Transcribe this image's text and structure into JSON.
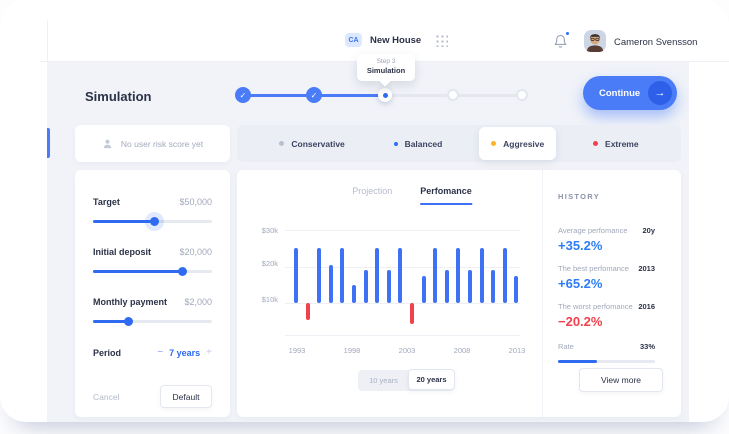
{
  "colors": {
    "accent": "#3e71f4",
    "positive": "#2e7cf6",
    "negative": "#f2414d",
    "warning": "#ffb425"
  },
  "glyphs": {
    "check": "✓",
    "arrow_right": "→",
    "minus": "−",
    "plus": "+"
  },
  "header": {
    "project_badge": "CA",
    "project_name": "New House",
    "tooltip_step": "Step 3",
    "tooltip_title": "Simulation",
    "user_name": "Cameron Svensson"
  },
  "page": {
    "title": "Simulation",
    "continue_label": "Continue"
  },
  "stepper": {
    "steps": [
      "done",
      "done",
      "current",
      "todo",
      "todo"
    ]
  },
  "risk": {
    "empty_label": "No user risk score yet",
    "options": [
      {
        "label": "Conservative",
        "dot_color": "#b9c0cf",
        "highlighted": false
      },
      {
        "label": "Balanced",
        "dot_color": "#2f6df6",
        "highlighted": false
      },
      {
        "label": "Aggresive",
        "dot_color": "#ffb425",
        "highlighted": true
      },
      {
        "label": "Extreme",
        "dot_color": "#f2414d",
        "highlighted": false
      }
    ]
  },
  "parameters": {
    "sliders": [
      {
        "label": "Target",
        "value": "$50,000",
        "percent": 51
      },
      {
        "label": "Initial deposit",
        "value": "$20,000",
        "percent": 75
      },
      {
        "label": "Monthly payment",
        "value": "$2,000",
        "percent": 29
      }
    ],
    "period": {
      "label": "Period",
      "value": "7 years"
    },
    "cancel_label": "Cancel",
    "default_label": "Default"
  },
  "chart": {
    "tabs": [
      "Projection",
      "Perfomance"
    ],
    "active_tab": "Perfomance",
    "range_options": [
      "10 years",
      "20 years"
    ],
    "active_range": "20 years"
  },
  "chart_data": {
    "type": "bar",
    "title": "Perfomance",
    "x": [
      1993,
      1994,
      1995,
      1996,
      1997,
      1998,
      1999,
      2000,
      2001,
      2002,
      2003,
      2004,
      2005,
      2006,
      2007,
      2008,
      2009,
      2010,
      2011,
      2012
    ],
    "values": [
      25,
      5.5,
      25,
      20.5,
      25,
      15,
      19,
      25,
      19,
      25,
      4.5,
      17.5,
      25,
      19,
      25,
      19,
      25,
      19,
      25,
      17.5
    ],
    "baseline": 10,
    "unit": "$k",
    "bar_color": "#3e71f4",
    "negative_color": "#f2414d",
    "negative_years": [
      1994,
      2003
    ],
    "y_ticks": [
      "$30k",
      "$20k",
      "$10k"
    ],
    "y_tick_values": [
      30,
      20,
      10
    ],
    "x_ticks": [
      "1993",
      "1998",
      "2003",
      "2008",
      "2013"
    ],
    "ylim": [
      0,
      32
    ],
    "grid": true,
    "legend": "none"
  },
  "history": {
    "title": "HISTORY",
    "rows": [
      {
        "label": "Average perfomance",
        "tag": "20y",
        "value": "+35.2%",
        "color": "#2e7cf6"
      },
      {
        "label": "The best perfomance",
        "tag": "2013",
        "value": "+65.2%",
        "color": "#2e7cf6"
      },
      {
        "label": "The worst perfomance",
        "tag": "2016",
        "value": "−20.2%",
        "color": "#f2414d"
      }
    ],
    "rate": {
      "label": "Rate",
      "value": "33%",
      "percent": 40
    },
    "view_more_label": "View more"
  }
}
